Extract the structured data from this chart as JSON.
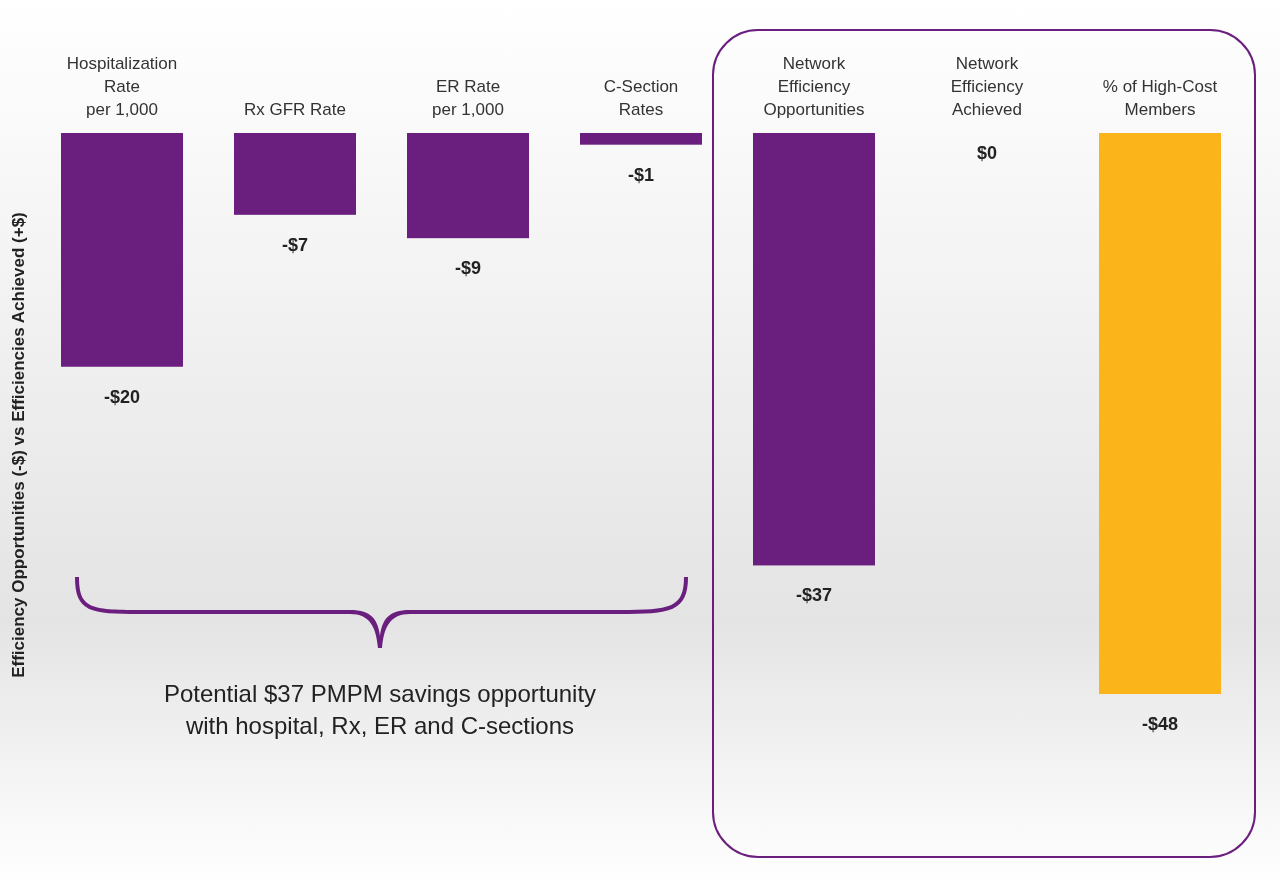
{
  "chart_data": {
    "type": "bar",
    "ylabel": "Efficiency Opportunities (-$) vs Efficiencies Achieved (+$)",
    "categories": [
      "Hospitalization\nRate\nper 1,000",
      "Rx GFR Rate",
      "ER Rate\nper 1,000",
      "C-Section\nRates",
      "Network\nEfficiency\nOpportunities",
      "Network\nEfficiency\nAchieved",
      "% of High-Cost\nMembers"
    ],
    "values": [
      -20,
      -7,
      -9,
      -1,
      -37,
      0,
      -48
    ],
    "colors": [
      "#6a1e7e",
      "#6a1e7e",
      "#6a1e7e",
      "#6a1e7e",
      "#6a1e7e",
      "#6a1e7e",
      "#fbb51b"
    ],
    "value_labels": [
      "-$20",
      "-$7",
      "-$9",
      "-$1",
      "-$37",
      "$0",
      "-$48"
    ],
    "annotations": [
      "Potential $37 PMPM savings opportunity\nwith hospital, Rx, ER and C-sections"
    ]
  }
}
